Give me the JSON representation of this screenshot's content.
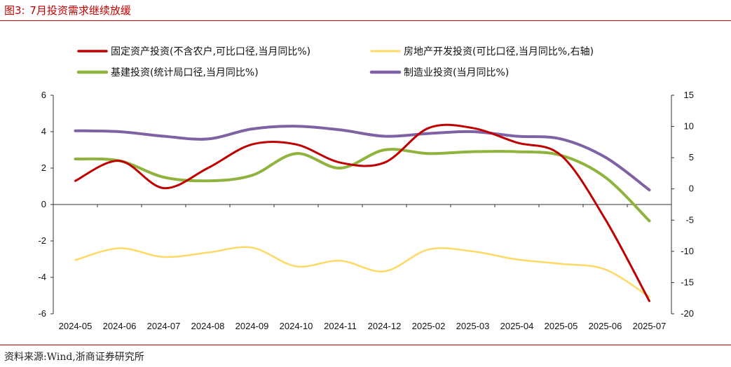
{
  "header": {
    "figure_label": "图3:",
    "figure_title": "7月投资需求继续放缓"
  },
  "footer": {
    "source": "资料来源:Wind,浙商证券研究所"
  },
  "colors": {
    "accent": "#c00000"
  },
  "chart_data": {
    "type": "line",
    "categories": [
      "2024-05",
      "2024-06",
      "2024-07",
      "2024-08",
      "2024-09",
      "2024-10",
      "2024-11",
      "2024-12",
      "2025-02",
      "2025-03",
      "2025-04",
      "2025-05",
      "2025-06",
      "2025-07"
    ],
    "left_axis": {
      "ylim": [
        -6,
        6
      ],
      "ticks": [
        -6,
        -4,
        -2,
        0,
        2,
        4,
        6
      ]
    },
    "right_axis": {
      "ylim": [
        -20,
        15
      ],
      "ticks": [
        -20,
        -15,
        -10,
        -5,
        0,
        5,
        10,
        15
      ]
    },
    "series": [
      {
        "name": "固定资产投资(不含农户,可比口径,当月同比%)",
        "axis": "left",
        "color": "#c00000",
        "values": [
          1.3,
          2.4,
          0.9,
          2.0,
          3.3,
          3.3,
          2.3,
          2.3,
          4.2,
          4.2,
          3.4,
          2.7,
          -0.8,
          -5.3
        ]
      },
      {
        "name": "房地产开发投资(可比口径,当月同比%,右轴)",
        "axis": "right",
        "color": "#ffd966",
        "values": [
          -11.4,
          -9.5,
          -10.9,
          -10.2,
          -9.4,
          -12.4,
          -11.5,
          -13.2,
          -9.7,
          -10.0,
          -11.3,
          -12.0,
          -12.9,
          -17.3
        ]
      },
      {
        "name": "基建投资(统计局口径,当月同比%)",
        "axis": "left",
        "color": "#8fb33c",
        "values": [
          2.5,
          2.4,
          1.5,
          1.3,
          1.6,
          2.8,
          2.0,
          3.0,
          2.8,
          2.9,
          2.9,
          2.7,
          1.5,
          -0.9
        ]
      },
      {
        "name": "制造业投资(当月同比%)",
        "axis": "left",
        "color": "#7f62a4",
        "values": [
          4.05,
          4.0,
          3.75,
          3.6,
          4.15,
          4.3,
          4.1,
          3.75,
          3.9,
          4.0,
          3.75,
          3.6,
          2.6,
          0.8
        ]
      }
    ]
  }
}
